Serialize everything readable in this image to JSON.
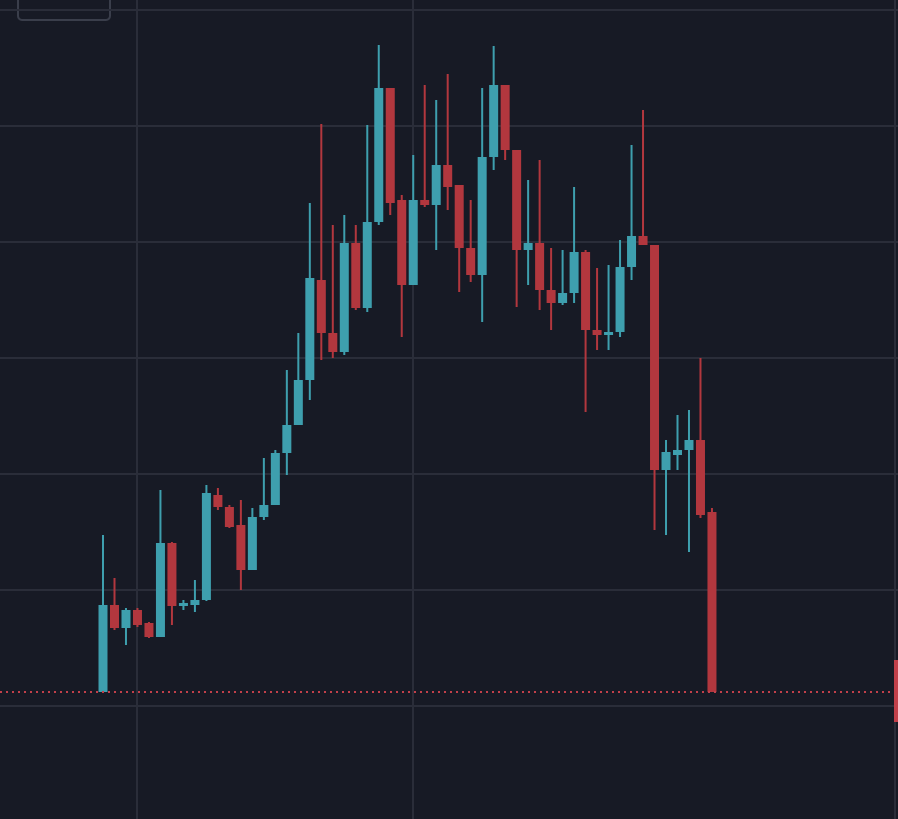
{
  "chart_data": {
    "type": "candlestick",
    "categories": [
      null,
      null,
      null,
      null,
      null,
      null,
      null,
      null,
      null,
      null,
      null,
      null,
      null,
      null,
      null,
      null,
      null,
      null,
      null,
      null,
      null,
      null,
      null,
      null,
      null,
      null,
      null,
      null,
      null,
      null,
      null,
      null,
      null,
      null,
      null,
      null,
      null,
      null,
      null,
      null,
      null,
      null,
      null,
      null,
      null,
      null,
      null,
      null,
      null,
      null,
      null,
      null,
      null,
      null
    ],
    "open": [
      14,
      101,
      78,
      96,
      83,
      69,
      163,
      100,
      101,
      106,
      211,
      199,
      181,
      136,
      189,
      201,
      253,
      281,
      326,
      426,
      373,
      354,
      463,
      398,
      484,
      618,
      506,
      421,
      506,
      501,
      541,
      521,
      458,
      431,
      549,
      621,
      556,
      456,
      463,
      416,
      403,
      413,
      454,
      376,
      371,
      374,
      439,
      470,
      461,
      236,
      251,
      256,
      266,
      194
    ],
    "high": [
      171,
      128,
      98,
      98,
      84,
      216,
      164,
      106,
      126,
      221,
      218,
      201,
      206,
      198,
      248,
      256,
      336,
      373,
      503,
      582,
      481,
      491,
      481,
      581,
      661,
      618,
      511,
      551,
      621,
      606,
      632,
      521,
      506,
      618,
      660,
      621,
      556,
      526,
      546,
      458,
      456,
      519,
      456,
      438,
      441,
      466,
      561,
      596,
      461,
      266,
      291,
      296,
      348,
      198
    ],
    "low": [
      14,
      76,
      61,
      79,
      68,
      69,
      81,
      96,
      94,
      105,
      196,
      178,
      116,
      136,
      186,
      201,
      231,
      281,
      306,
      346,
      348,
      351,
      396,
      394,
      481,
      491,
      369,
      421,
      499,
      456,
      496,
      414,
      424,
      384,
      536,
      546,
      399,
      421,
      396,
      376,
      401,
      403,
      294,
      356,
      356,
      369,
      426,
      461,
      176,
      171,
      236,
      154,
      188,
      14
    ],
    "close": [
      101,
      78,
      96,
      81,
      69,
      163,
      100,
      103,
      106,
      213,
      199,
      179,
      136,
      189,
      201,
      253,
      281,
      326,
      428,
      373,
      354,
      463,
      398,
      484,
      618,
      503,
      421,
      506,
      501,
      541,
      519,
      458,
      431,
      549,
      621,
      556,
      456,
      463,
      416,
      403,
      413,
      454,
      376,
      371,
      374,
      439,
      470,
      461,
      236,
      254,
      256,
      266,
      191,
      14
    ],
    "up_color": "#3e9fae",
    "down_color": "#b2373e",
    "ylim": [
      -113,
      706
    ],
    "yticks": [
      0,
      116,
      232,
      348,
      464,
      580,
      696
    ],
    "grid": true,
    "price_line": 14,
    "price_line_color": "#c2404a"
  }
}
